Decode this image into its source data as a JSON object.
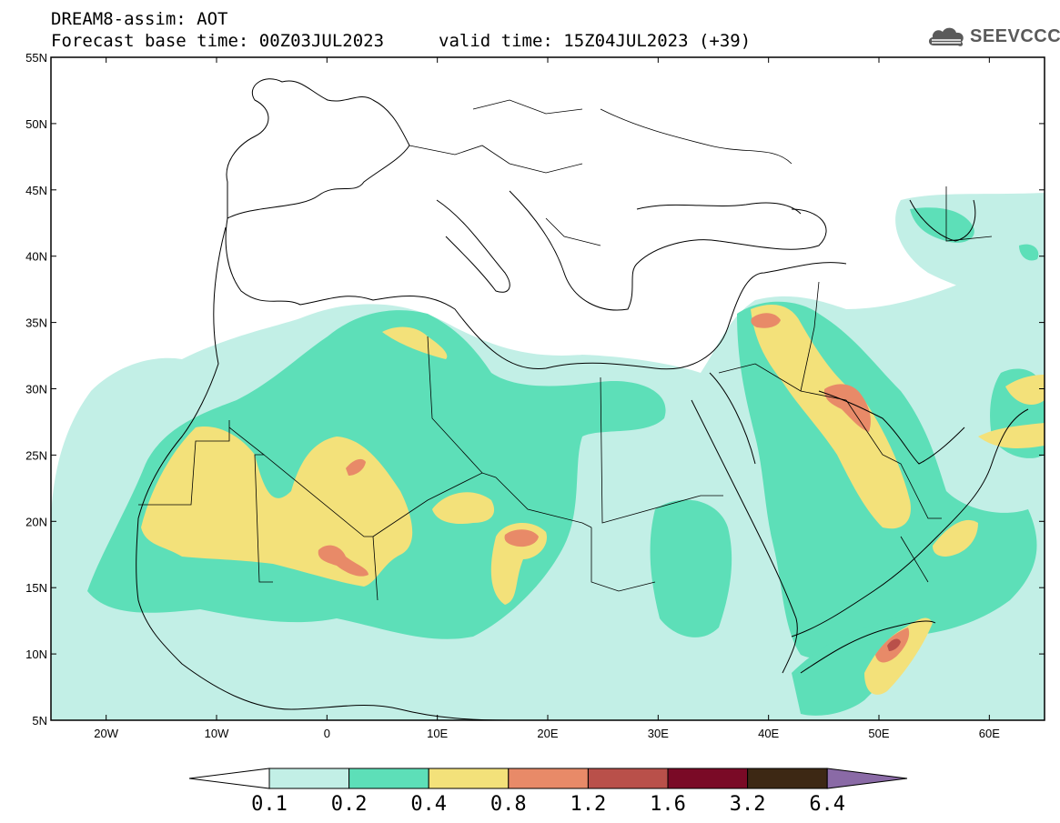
{
  "header": {
    "title_line1": "DREAM8-assim: AOT",
    "title_line2": "Forecast base time: 00Z03JUL2023",
    "valid_time": "valid time: 15Z04JUL2023 (+39)"
  },
  "logo": {
    "text": "SEEVCCC",
    "icon": "cloud-icon"
  },
  "map": {
    "lon_range": [
      -25,
      65
    ],
    "lat_range": [
      5,
      55
    ],
    "lat_ticks": [
      "55N",
      "50N",
      "45N",
      "40N",
      "35N",
      "30N",
      "25N",
      "20N",
      "15N",
      "10N",
      "5N"
    ],
    "lon_ticks": [
      "20W",
      "10W",
      "0",
      "10E",
      "20E",
      "30E",
      "40E",
      "50E",
      "60E"
    ]
  },
  "colorbar": {
    "labels": [
      "0.1",
      "0.2",
      "0.4",
      "0.8",
      "1.2",
      "1.6",
      "3.2",
      "6.4"
    ],
    "colors": [
      "#ffffff",
      "#c2efe6",
      "#5ddfb8",
      "#f3e17a",
      "#e88a68",
      "#b9504a",
      "#7a0a26",
      "#3d2814",
      "#8a6aa6"
    ]
  },
  "colors": {
    "class1": "#c2efe6",
    "class2": "#5ddfb8",
    "class3": "#f3e17a",
    "class4": "#e88a68",
    "class5": "#b9504a"
  }
}
